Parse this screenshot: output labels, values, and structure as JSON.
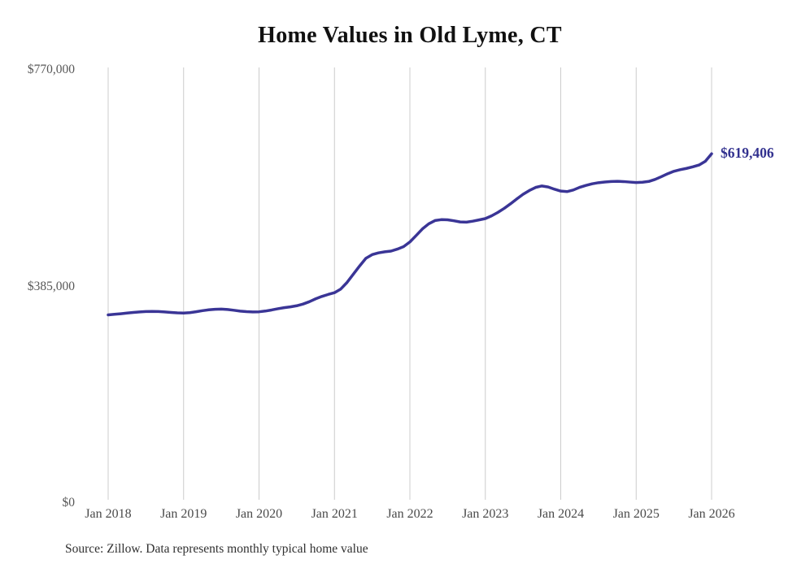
{
  "chart_data": {
    "type": "line",
    "title": "Home Values in Old Lyme, CT",
    "source": "Source: Zillow. Data represents monthly typical home value",
    "end_label": "$619,406",
    "latest_value": 619406,
    "xlabel": "",
    "ylabel": "",
    "ylim": [
      0,
      770000
    ],
    "grid": "vertical-only",
    "legend": "none",
    "x_tick_labels": [
      "Jan 2018",
      "Jan 2019",
      "Jan 2020",
      "Jan 2021",
      "Jan 2022",
      "Jan 2023",
      "Jan 2024",
      "Jan 2025",
      "Jan 2026"
    ],
    "y_ticks": [
      {
        "label": "$0",
        "value": 0
      },
      {
        "label": "$385,000",
        "value": 385000
      },
      {
        "label": "$770,000",
        "value": 770000
      }
    ],
    "x_start": "Jan 2018",
    "x_end": "Jan 2026",
    "x_interval": "monthly",
    "series": [
      {
        "name": "Monthly typical home value",
        "color": "#3a3596",
        "values": [
          333000,
          334000,
          335000,
          336200,
          337400,
          338300,
          339000,
          339200,
          338900,
          338300,
          337400,
          336600,
          336200,
          337000,
          338600,
          340500,
          342000,
          343000,
          343200,
          342500,
          341200,
          339700,
          338700,
          338300,
          338500,
          339800,
          341700,
          343900,
          345800,
          347300,
          349200,
          352200,
          356400,
          361500,
          365800,
          369300,
          372400,
          378900,
          390600,
          405300,
          419900,
          433600,
          440100,
          443200,
          445100,
          446400,
          449900,
          454300,
          462700,
          474100,
          485900,
          494900,
          500700,
          502300,
          502000,
          500300,
          498200,
          497900,
          499600,
          501800,
          504200,
          509100,
          515200,
          522300,
          530400,
          539100,
          547300,
          554100,
          559600,
          562200,
          560300,
          556400,
          553100,
          552200,
          555000,
          559700,
          563100,
          566000,
          568000,
          569200,
          570100,
          570400,
          570000,
          569100,
          568300,
          568900,
          570200,
          573800,
          578700,
          583900,
          588300,
          591100,
          593400,
          596200,
          599400,
          606000,
          619406
        ]
      }
    ],
    "colors": {
      "line": "#3a3596",
      "end_label": "#32318f",
      "gridline": "#cccccc",
      "y_tick_text": "#575757",
      "x_tick_text": "#4a4a4a",
      "title_text": "#111111",
      "source_text": "#303030",
      "background": "#ffffff"
    }
  }
}
